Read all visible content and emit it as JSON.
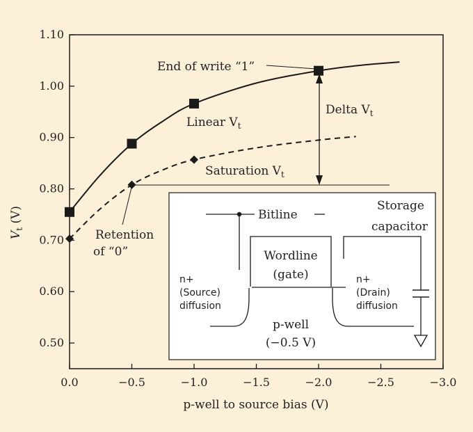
{
  "colors": {
    "background": "#fdf0d9",
    "plot_area": "#fdf0d9",
    "ink": "#1a1a1a",
    "inset_fill": "#ffffff"
  },
  "chart_data": {
    "type": "line",
    "xlabel": "p-well to source bias  (V)",
    "ylabel_main": "V",
    "ylabel_sub": "t",
    "ylabel_unit": " (V)",
    "xlim": [
      0.0,
      -3.0
    ],
    "ylim": [
      0.45,
      1.1
    ],
    "x_ticks": [
      "0.0",
      "−0.5",
      "−1.0",
      "−1.5",
      "−2.0",
      "−2.5",
      "−3.0"
    ],
    "y_ticks": [
      "0.50",
      "0.60",
      "0.70",
      "0.80",
      "0.90",
      "1.00",
      "1.10"
    ],
    "series": [
      {
        "style": "solid",
        "marker": "square",
        "points": [
          [
            0.0,
            0.755
          ],
          [
            -0.5,
            0.888
          ],
          [
            -1.0,
            0.966
          ],
          [
            -2.0,
            1.03
          ]
        ],
        "curve": [
          [
            0.0,
            0.755
          ],
          [
            -0.25,
            0.828
          ],
          [
            -0.5,
            0.888
          ],
          [
            -0.75,
            0.932
          ],
          [
            -1.0,
            0.966
          ],
          [
            -1.5,
            1.006
          ],
          [
            -2.0,
            1.03
          ],
          [
            -2.35,
            1.041
          ],
          [
            -2.65,
            1.047
          ]
        ]
      },
      {
        "style": "dashed",
        "marker": "diamond",
        "points": [
          [
            0.0,
            0.703
          ],
          [
            -0.5,
            0.808
          ],
          [
            -1.0,
            0.857
          ]
        ],
        "curve": [
          [
            0.0,
            0.703
          ],
          [
            -0.25,
            0.762
          ],
          [
            -0.5,
            0.808
          ],
          [
            -0.75,
            0.837
          ],
          [
            -1.0,
            0.857
          ],
          [
            -1.5,
            0.88
          ],
          [
            -2.0,
            0.895
          ],
          [
            -2.3,
            0.902
          ]
        ]
      }
    ],
    "annotations": {
      "end_write": "End of write “1”",
      "linear_main": "Linear V",
      "linear_sub": "t",
      "delta_main": "Delta V",
      "delta_sub": "t",
      "saturation_main": "Saturation V",
      "saturation_sub": "t",
      "retention_1": "Retention",
      "retention_2": "of “0”"
    },
    "inset": {
      "bitline": "Bitline",
      "storage_1": "Storage",
      "storage_2": "capacitor",
      "wordline_1": "Wordline",
      "wordline_2": "(gate)",
      "source_1": "n+",
      "source_2": "(Source)",
      "source_3": "diffusion",
      "drain_1": "n+",
      "drain_2": "(Drain)",
      "drain_3": "diffusion",
      "pwell_1": "p-well",
      "pwell_2": "(−0.5 V)"
    }
  }
}
